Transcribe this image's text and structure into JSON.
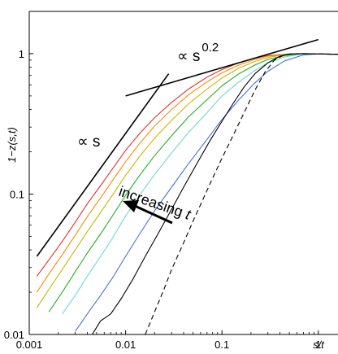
{
  "chart_data": {
    "type": "line",
    "title": "",
    "xlabel": "s/t",
    "ylabel": "1−z(s,t)",
    "xscale": "log",
    "yscale": "log",
    "xlim": [
      0.001,
      1.6
    ],
    "ylim": [
      0.01,
      2.0
    ],
    "grid": false,
    "x_ticks": [
      {
        "value": 0.001,
        "label": "0.001"
      },
      {
        "value": 0.01,
        "label": "0.01"
      },
      {
        "value": 0.1,
        "label": "0.1"
      },
      {
        "value": 1,
        "label": "1"
      }
    ],
    "y_ticks": [
      {
        "value": 0.01,
        "label": "0.01"
      },
      {
        "value": 0.1,
        "label": "0.1"
      },
      {
        "value": 1,
        "label": "1"
      }
    ],
    "series": [
      {
        "color": "#e8302a",
        "style": "solid",
        "points": [
          [
            0.0012,
            0.026
          ],
          [
            0.0016,
            0.034
          ],
          [
            0.0022,
            0.046
          ],
          [
            0.003,
            0.063
          ],
          [
            0.004,
            0.085
          ],
          [
            0.0055,
            0.115
          ],
          [
            0.0075,
            0.155
          ],
          [
            0.01,
            0.205
          ],
          [
            0.014,
            0.27
          ],
          [
            0.02,
            0.35
          ],
          [
            0.03,
            0.45
          ],
          [
            0.045,
            0.56
          ],
          [
            0.07,
            0.68
          ],
          [
            0.1,
            0.77
          ],
          [
            0.15,
            0.86
          ],
          [
            0.22,
            0.93
          ],
          [
            0.3,
            0.97
          ],
          [
            0.45,
            0.99
          ],
          [
            0.7,
            1.0
          ],
          [
            1.0,
            0.995
          ],
          [
            1.6,
            0.99
          ]
        ]
      },
      {
        "color": "#ff8c00",
        "style": "solid",
        "points": [
          [
            0.0012,
            0.02
          ],
          [
            0.0016,
            0.027
          ],
          [
            0.0022,
            0.037
          ],
          [
            0.003,
            0.051
          ],
          [
            0.004,
            0.069
          ],
          [
            0.0055,
            0.094
          ],
          [
            0.0075,
            0.128
          ],
          [
            0.01,
            0.17
          ],
          [
            0.014,
            0.23
          ],
          [
            0.02,
            0.305
          ],
          [
            0.03,
            0.4
          ],
          [
            0.045,
            0.51
          ],
          [
            0.07,
            0.63
          ],
          [
            0.1,
            0.73
          ],
          [
            0.15,
            0.83
          ],
          [
            0.22,
            0.91
          ],
          [
            0.3,
            0.96
          ],
          [
            0.45,
            0.99
          ],
          [
            0.7,
            1.0
          ],
          [
            1.0,
            0.995
          ],
          [
            1.6,
            0.99
          ]
        ]
      },
      {
        "color": "#c9b800",
        "style": "solid",
        "points": [
          [
            0.0012,
            0.0155
          ],
          [
            0.0016,
            0.021
          ],
          [
            0.0022,
            0.029
          ],
          [
            0.003,
            0.04
          ],
          [
            0.004,
            0.054
          ],
          [
            0.0055,
            0.074
          ],
          [
            0.0075,
            0.101
          ],
          [
            0.01,
            0.136
          ],
          [
            0.014,
            0.186
          ],
          [
            0.02,
            0.25
          ],
          [
            0.03,
            0.335
          ],
          [
            0.045,
            0.44
          ],
          [
            0.07,
            0.56
          ],
          [
            0.1,
            0.67
          ],
          [
            0.15,
            0.79
          ],
          [
            0.22,
            0.88
          ],
          [
            0.3,
            0.94
          ],
          [
            0.45,
            0.985
          ],
          [
            0.7,
            1.0
          ],
          [
            1.0,
            0.995
          ],
          [
            1.6,
            0.99
          ]
        ]
      },
      {
        "color": "#22b022",
        "style": "solid",
        "points": [
          [
            0.0016,
            0.0145
          ],
          [
            0.0022,
            0.02
          ],
          [
            0.003,
            0.028
          ],
          [
            0.004,
            0.038
          ],
          [
            0.0055,
            0.052
          ],
          [
            0.0075,
            0.072
          ],
          [
            0.01,
            0.098
          ],
          [
            0.014,
            0.136
          ],
          [
            0.02,
            0.188
          ],
          [
            0.03,
            0.26
          ],
          [
            0.045,
            0.355
          ],
          [
            0.07,
            0.47
          ],
          [
            0.1,
            0.59
          ],
          [
            0.15,
            0.72
          ],
          [
            0.22,
            0.83
          ],
          [
            0.3,
            0.91
          ],
          [
            0.45,
            0.97
          ],
          [
            0.7,
            1.0
          ],
          [
            1.0,
            0.995
          ],
          [
            1.6,
            0.99
          ]
        ]
      },
      {
        "color": "#6fd6d6",
        "style": "solid",
        "points": [
          [
            0.0022,
            0.014
          ],
          [
            0.003,
            0.019
          ],
          [
            0.004,
            0.026
          ],
          [
            0.0055,
            0.036
          ],
          [
            0.0075,
            0.05
          ],
          [
            0.01,
            0.07
          ],
          [
            0.014,
            0.098
          ],
          [
            0.02,
            0.138
          ],
          [
            0.03,
            0.196
          ],
          [
            0.045,
            0.275
          ],
          [
            0.07,
            0.38
          ],
          [
            0.1,
            0.5
          ],
          [
            0.15,
            0.63
          ],
          [
            0.22,
            0.76
          ],
          [
            0.3,
            0.86
          ],
          [
            0.45,
            0.95
          ],
          [
            0.7,
            0.995
          ],
          [
            1.0,
            0.995
          ],
          [
            1.6,
            0.99
          ]
        ]
      },
      {
        "color": "#4a6fd8",
        "style": "solid",
        "points": [
          [
            0.003,
            0.0105
          ],
          [
            0.004,
            0.014
          ],
          [
            0.0055,
            0.019
          ],
          [
            0.0075,
            0.026
          ],
          [
            0.01,
            0.036
          ],
          [
            0.014,
            0.052
          ],
          [
            0.02,
            0.076
          ],
          [
            0.03,
            0.112
          ],
          [
            0.045,
            0.165
          ],
          [
            0.07,
            0.245
          ],
          [
            0.1,
            0.34
          ],
          [
            0.15,
            0.47
          ],
          [
            0.22,
            0.62
          ],
          [
            0.3,
            0.75
          ],
          [
            0.45,
            0.89
          ],
          [
            0.7,
            0.98
          ],
          [
            1.0,
            0.995
          ],
          [
            1.6,
            0.99
          ]
        ]
      },
      {
        "color": "#000000",
        "style": "solid",
        "points": [
          [
            0.0045,
            0.01
          ],
          [
            0.0055,
            0.0125
          ],
          [
            0.007,
            0.014
          ],
          [
            0.009,
            0.018
          ],
          [
            0.012,
            0.025
          ],
          [
            0.016,
            0.036
          ],
          [
            0.022,
            0.053
          ],
          [
            0.03,
            0.078
          ],
          [
            0.04,
            0.112
          ],
          [
            0.055,
            0.165
          ],
          [
            0.075,
            0.24
          ],
          [
            0.1,
            0.33
          ],
          [
            0.13,
            0.44
          ],
          [
            0.17,
            0.58
          ],
          [
            0.22,
            0.72
          ],
          [
            0.3,
            0.86
          ],
          [
            0.4,
            0.96
          ],
          [
            0.5,
            0.995
          ],
          [
            0.7,
            1.0
          ],
          [
            1.0,
            0.995
          ],
          [
            1.6,
            0.99
          ]
        ]
      },
      {
        "color": "#000000",
        "style": "dashed",
        "points": [
          [
            0.016,
            0.01
          ],
          [
            0.02,
            0.0145
          ],
          [
            0.025,
            0.021
          ],
          [
            0.03,
            0.029
          ],
          [
            0.04,
            0.045
          ],
          [
            0.05,
            0.064
          ],
          [
            0.065,
            0.095
          ],
          [
            0.08,
            0.13
          ],
          [
            0.1,
            0.18
          ],
          [
            0.13,
            0.26
          ],
          [
            0.17,
            0.38
          ],
          [
            0.22,
            0.55
          ],
          [
            0.28,
            0.74
          ],
          [
            0.35,
            0.9
          ],
          [
            0.45,
            0.985
          ],
          [
            0.6,
            1.0
          ],
          [
            1.0,
            0.995
          ],
          [
            1.6,
            0.99
          ]
        ]
      }
    ],
    "guides": [
      {
        "name": "∝ s",
        "points": [
          [
            0.0012,
            0.036
          ],
          [
            0.028,
            0.72
          ]
        ]
      },
      {
        "name": "∝ s^0.2",
        "points": [
          [
            0.01,
            0.5
          ],
          [
            1.0,
            1.26
          ]
        ]
      }
    ],
    "annotations": {
      "prop_s_text": "∝ s",
      "prop_s02_base": "∝ s",
      "prop_s02_exp": "0.2",
      "increasing_t_text": "increasing t",
      "increasing_word": "increasing ",
      "t_word": "t"
    }
  }
}
